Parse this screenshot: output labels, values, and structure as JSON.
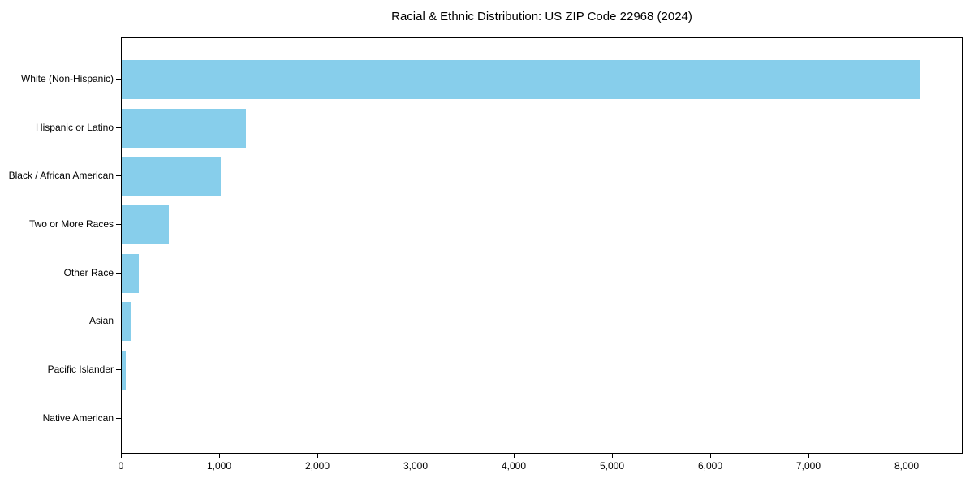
{
  "chart_data": {
    "type": "bar",
    "orientation": "horizontal",
    "title": "Racial & Ethnic Distribution: US ZIP Code 22968 (2024)",
    "categories": [
      "White (Non-Hispanic)",
      "Hispanic or Latino",
      "Black / African American",
      "Two or More Races",
      "Other Race",
      "Asian",
      "Pacific Islander",
      "Native American"
    ],
    "values": [
      8150,
      1265,
      1010,
      480,
      175,
      95,
      40,
      0
    ],
    "xlabel": "",
    "ylabel": "",
    "xlim": [
      0,
      8570
    ],
    "x_ticks": [
      0,
      1000,
      2000,
      3000,
      4000,
      5000,
      6000,
      7000,
      8000
    ],
    "x_tick_labels": [
      "0",
      "1,000",
      "2,000",
      "3,000",
      "4,000",
      "5,000",
      "6,000",
      "7,000",
      "8,000"
    ],
    "bar_color": "#87CEEB",
    "text_color": "#000000",
    "spine_color": "#000000",
    "background_color": "#ffffff",
    "grid": false,
    "legend": null
  }
}
